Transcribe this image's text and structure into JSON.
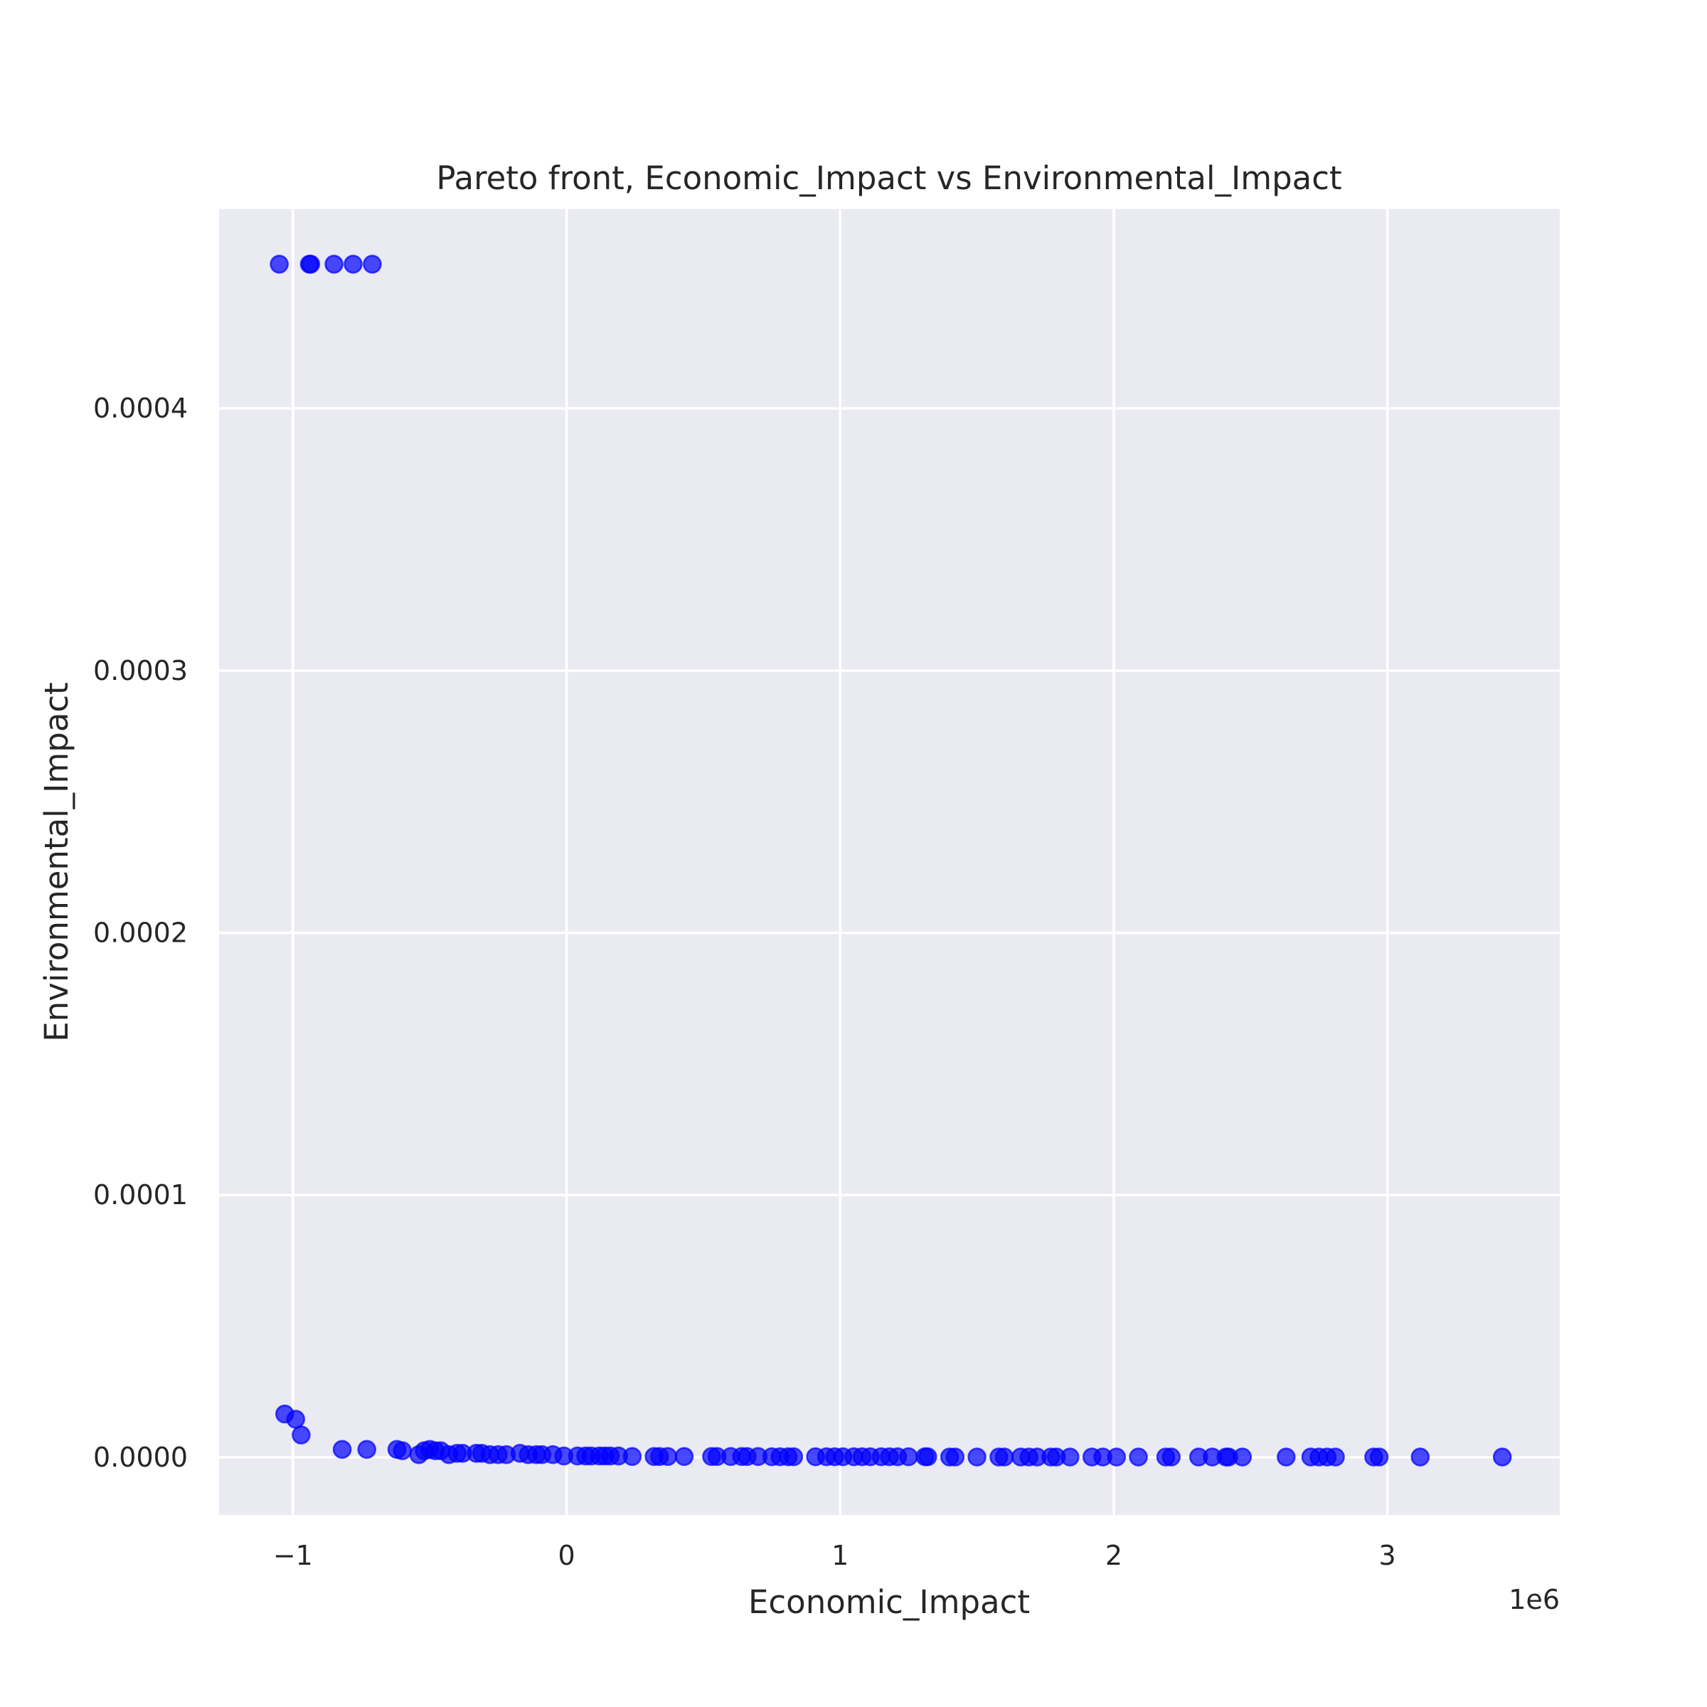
{
  "chart_data": {
    "type": "scatter",
    "title": "Pareto front, Economic_Impact vs Environmental_Impact",
    "xlabel": "Economic_Impact",
    "ylabel": "Environmental_Impact",
    "x_offset_text": "1e6",
    "xlim": [
      -1.27,
      3.63
    ],
    "ylim": [
      -2.2e-05,
      0.000476
    ],
    "xticks": [
      {
        "value": -1,
        "label": "−1"
      },
      {
        "value": 0,
        "label": "0"
      },
      {
        "value": 1,
        "label": "1"
      },
      {
        "value": 2,
        "label": "2"
      },
      {
        "value": 3,
        "label": "3"
      }
    ],
    "yticks": [
      {
        "value": 0.0,
        "label": "0.0000"
      },
      {
        "value": 0.0001,
        "label": "0.0001"
      },
      {
        "value": 0.0002,
        "label": "0.0002"
      },
      {
        "value": 0.0003,
        "label": "0.0003"
      },
      {
        "value": 0.0004,
        "label": "0.0004"
      }
    ],
    "grid": true,
    "colors": {
      "background": "#eaeaf2",
      "grid": "#ffffff",
      "point": "#0000ff",
      "text": "#262626"
    },
    "series": [
      {
        "name": "Pareto front",
        "points": [
          {
            "x": -1.05,
            "y": 0.000455
          },
          {
            "x": -0.94,
            "y": 0.000455
          },
          {
            "x": -0.935,
            "y": 0.000455
          },
          {
            "x": -0.85,
            "y": 0.000455
          },
          {
            "x": -0.78,
            "y": 0.000455
          },
          {
            "x": -0.71,
            "y": 0.000455
          },
          {
            "x": -1.03,
            "y": 1.65e-05
          },
          {
            "x": -0.99,
            "y": 1.45e-05
          },
          {
            "x": -0.97,
            "y": 8.5e-06
          },
          {
            "x": -0.82,
            "y": 3e-06
          },
          {
            "x": -0.73,
            "y": 3e-06
          },
          {
            "x": -0.62,
            "y": 3e-06
          },
          {
            "x": -0.6,
            "y": 2.5e-06
          },
          {
            "x": -0.54,
            "y": 1e-06
          },
          {
            "x": -0.52,
            "y": 2.5e-06
          },
          {
            "x": -0.5,
            "y": 3e-06
          },
          {
            "x": -0.48,
            "y": 2.5e-06
          },
          {
            "x": -0.46,
            "y": 2.5e-06
          },
          {
            "x": -0.43,
            "y": 1e-06
          },
          {
            "x": -0.4,
            "y": 1.5e-06
          },
          {
            "x": -0.38,
            "y": 1.5e-06
          },
          {
            "x": -0.33,
            "y": 1.5e-06
          },
          {
            "x": -0.31,
            "y": 1.5e-06
          },
          {
            "x": -0.28,
            "y": 1e-06
          },
          {
            "x": -0.25,
            "y": 1e-06
          },
          {
            "x": -0.22,
            "y": 1e-06
          },
          {
            "x": -0.17,
            "y": 1.5e-06
          },
          {
            "x": -0.14,
            "y": 1e-06
          },
          {
            "x": -0.11,
            "y": 1e-06
          },
          {
            "x": -0.09,
            "y": 1e-06
          },
          {
            "x": -0.05,
            "y": 1e-06
          },
          {
            "x": -0.01,
            "y": 5e-07
          },
          {
            "x": 0.04,
            "y": 5e-07
          },
          {
            "x": 0.07,
            "y": 5e-07
          },
          {
            "x": 0.09,
            "y": 5e-07
          },
          {
            "x": 0.12,
            "y": 5e-07
          },
          {
            "x": 0.14,
            "y": 5e-07
          },
          {
            "x": 0.16,
            "y": 5e-07
          },
          {
            "x": 0.19,
            "y": 5e-07
          },
          {
            "x": 0.24,
            "y": 3e-07
          },
          {
            "x": 0.32,
            "y": 3e-07
          },
          {
            "x": 0.34,
            "y": 3e-07
          },
          {
            "x": 0.37,
            "y": 3e-07
          },
          {
            "x": 0.43,
            "y": 3e-07
          },
          {
            "x": 0.53,
            "y": 3e-07
          },
          {
            "x": 0.55,
            "y": 3e-07
          },
          {
            "x": 0.6,
            "y": 3e-07
          },
          {
            "x": 0.64,
            "y": 3e-07
          },
          {
            "x": 0.66,
            "y": 3e-07
          },
          {
            "x": 0.7,
            "y": 3e-07
          },
          {
            "x": 0.75,
            "y": 2e-07
          },
          {
            "x": 0.78,
            "y": 2e-07
          },
          {
            "x": 0.81,
            "y": 2e-07
          },
          {
            "x": 0.83,
            "y": 2e-07
          },
          {
            "x": 0.91,
            "y": 2e-07
          },
          {
            "x": 0.95,
            "y": 2e-07
          },
          {
            "x": 0.98,
            "y": 2e-07
          },
          {
            "x": 1.01,
            "y": 2e-07
          },
          {
            "x": 1.05,
            "y": 2e-07
          },
          {
            "x": 1.08,
            "y": 2e-07
          },
          {
            "x": 1.11,
            "y": 2e-07
          },
          {
            "x": 1.15,
            "y": 2e-07
          },
          {
            "x": 1.18,
            "y": 2e-07
          },
          {
            "x": 1.21,
            "y": 2e-07
          },
          {
            "x": 1.25,
            "y": 2e-07
          },
          {
            "x": 1.31,
            "y": 2e-07
          },
          {
            "x": 1.32,
            "y": 2e-07
          },
          {
            "x": 1.4,
            "y": 1e-07
          },
          {
            "x": 1.42,
            "y": 1e-07
          },
          {
            "x": 1.5,
            "y": 1e-07
          },
          {
            "x": 1.58,
            "y": 1e-07
          },
          {
            "x": 1.6,
            "y": 1e-07
          },
          {
            "x": 1.66,
            "y": 1e-07
          },
          {
            "x": 1.69,
            "y": 1e-07
          },
          {
            "x": 1.72,
            "y": 1e-07
          },
          {
            "x": 1.77,
            "y": 1e-07
          },
          {
            "x": 1.79,
            "y": 1e-07
          },
          {
            "x": 1.84,
            "y": 1e-07
          },
          {
            "x": 1.92,
            "y": 1e-07
          },
          {
            "x": 1.96,
            "y": 1e-07
          },
          {
            "x": 2.01,
            "y": 1e-07
          },
          {
            "x": 2.09,
            "y": 1e-07
          },
          {
            "x": 2.19,
            "y": 1e-07
          },
          {
            "x": 2.21,
            "y": 1e-07
          },
          {
            "x": 2.31,
            "y": 1e-07
          },
          {
            "x": 2.36,
            "y": 1e-07
          },
          {
            "x": 2.41,
            "y": 1e-07
          },
          {
            "x": 2.42,
            "y": 1e-07
          },
          {
            "x": 2.47,
            "y": 1e-07
          },
          {
            "x": 2.63,
            "y": 1e-07
          },
          {
            "x": 2.72,
            "y": 1e-07
          },
          {
            "x": 2.75,
            "y": 1e-07
          },
          {
            "x": 2.78,
            "y": 1e-07
          },
          {
            "x": 2.81,
            "y": 1e-07
          },
          {
            "x": 2.95,
            "y": 1e-07
          },
          {
            "x": 2.97,
            "y": 1e-07
          },
          {
            "x": 3.12,
            "y": 1e-07
          },
          {
            "x": 3.42,
            "y": 1e-07
          }
        ]
      }
    ]
  }
}
